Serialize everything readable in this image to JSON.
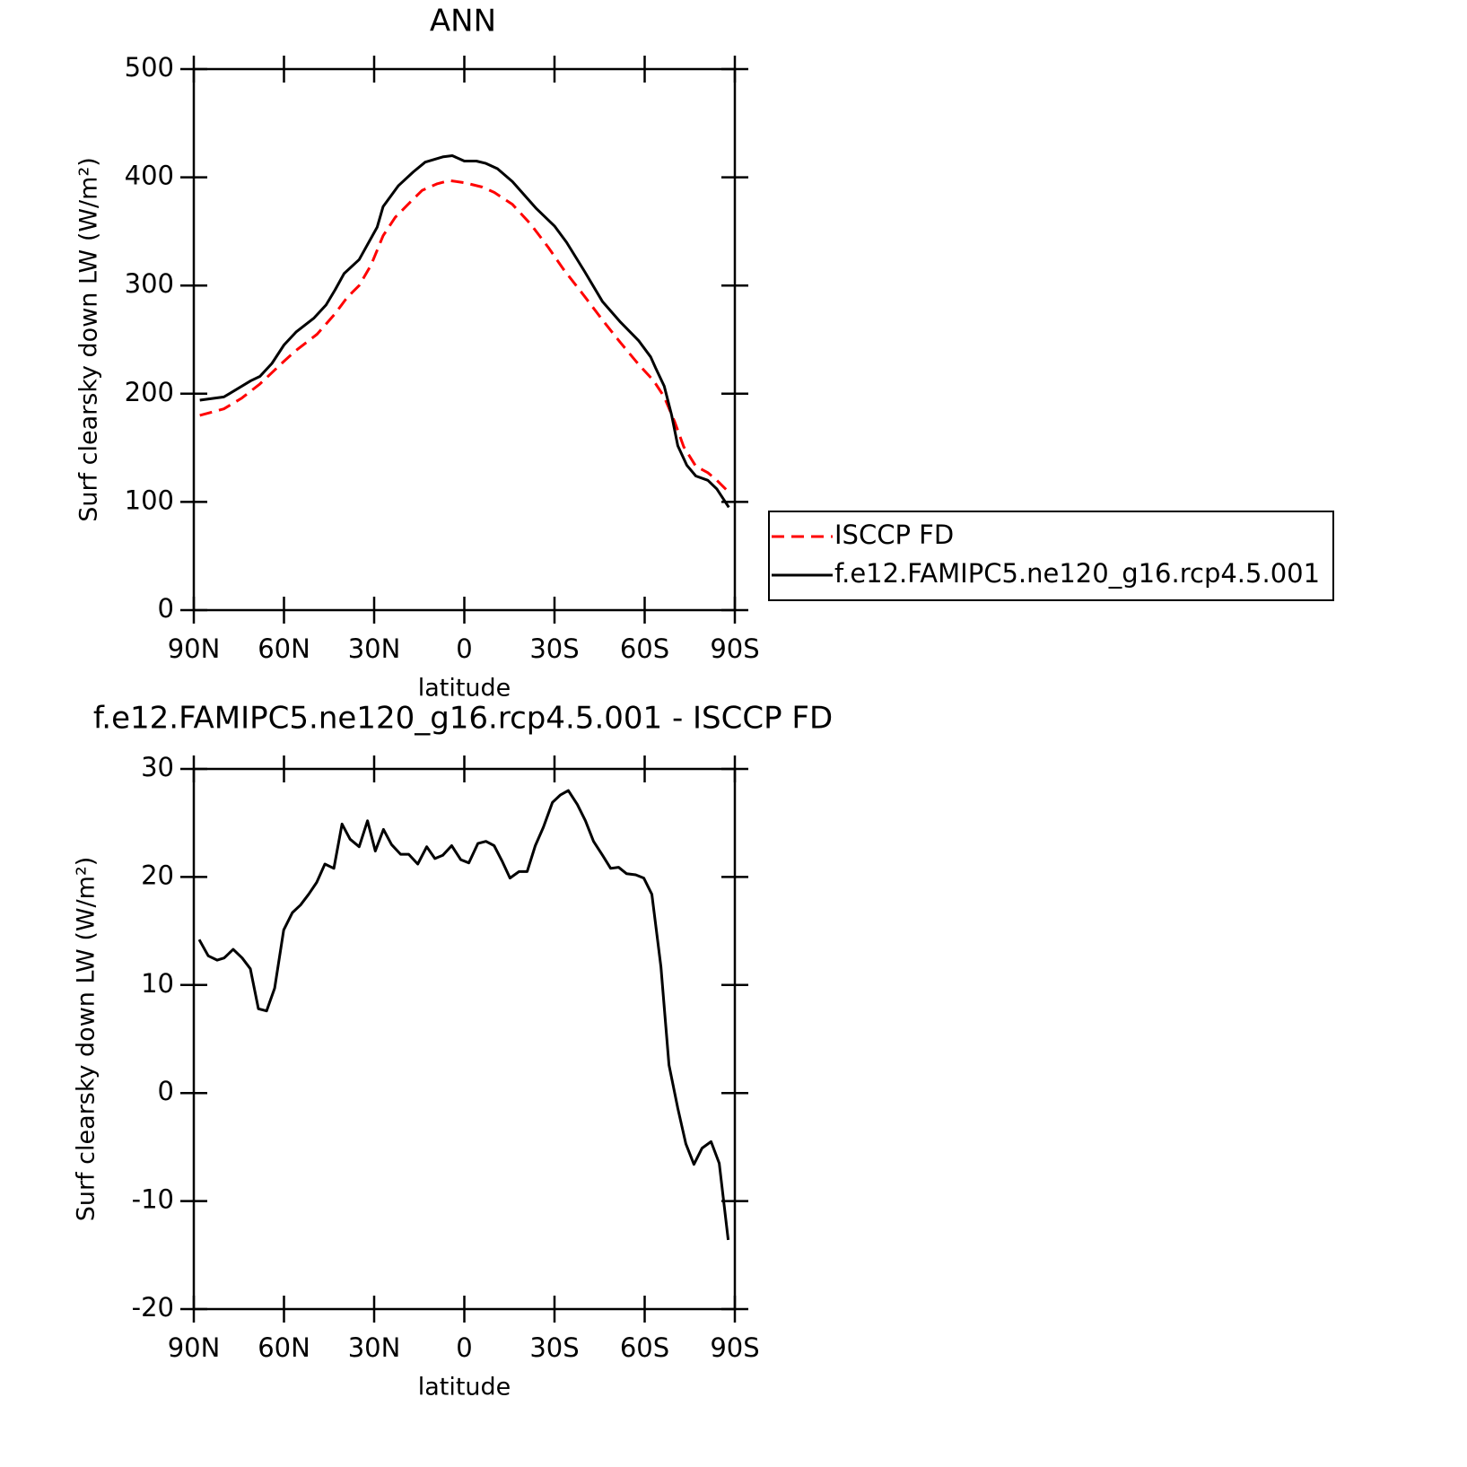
{
  "chart_data": [
    {
      "type": "line",
      "title": "ANN",
      "xlabel": "latitude",
      "ylabel": "Surf clearsky down LW (W/m²)",
      "xlim": [
        90,
        -90
      ],
      "xticks": [
        {
          "value": 90,
          "label": "90N"
        },
        {
          "value": 60,
          "label": "60N"
        },
        {
          "value": 30,
          "label": "30N"
        },
        0,
        {
          "value": -30,
          "label": "30S"
        },
        {
          "value": -60,
          "label": "60S"
        },
        {
          "value": -90,
          "label": "90S"
        }
      ],
      "ylim": [
        0,
        500
      ],
      "yticks": [
        0,
        100,
        200,
        300,
        400,
        500
      ],
      "legend": "right",
      "series": [
        {
          "name": "ISCCP FD",
          "color": "#ff0000",
          "dash": true,
          "x": [
            88,
            80,
            74,
            68,
            60,
            56,
            49,
            43,
            39,
            35,
            31,
            27,
            23,
            18,
            14,
            9,
            5,
            0,
            -6,
            -10,
            -16,
            -22,
            -28,
            -33,
            -40,
            -46,
            -52,
            -58,
            -63,
            -66.5,
            -70,
            -73,
            -77,
            -81,
            -84,
            -88
          ],
          "values": [
            180,
            186,
            196,
            209,
            230,
            240,
            255,
            274,
            289,
            300,
            319,
            346,
            363,
            377,
            388,
            394,
            397,
            395,
            391,
            386,
            375,
            357,
            335,
            315,
            290,
            268,
            247,
            227,
            212,
            197,
            174,
            151,
            133,
            127,
            120,
            109
          ]
        },
        {
          "name": "f.e12.FAMIPC5.ne120_g16.rcp4.5.001",
          "color": "#000000",
          "dash": false,
          "x": [
            88,
            80,
            71,
            68,
            64,
            60,
            56,
            50,
            46,
            43,
            40,
            35,
            29,
            27,
            22,
            17,
            13,
            7,
            4,
            0,
            -4,
            -7,
            -11,
            -16,
            -24,
            -30,
            -34,
            -40,
            -46,
            -52,
            -58,
            -62,
            -63.6,
            -66.5,
            -69,
            -71,
            -74,
            -77,
            -81,
            -84,
            -88
          ],
          "values": [
            194,
            197,
            212,
            216,
            228,
            245,
            257,
            270,
            282,
            296,
            311,
            324,
            354,
            373,
            392,
            405,
            414,
            419,
            420,
            415,
            415,
            413,
            408,
            396,
            371,
            355,
            340,
            313,
            285,
            266,
            249,
            234,
            224,
            207,
            180,
            152,
            134,
            124,
            120,
            112,
            95
          ]
        }
      ]
    },
    {
      "type": "line",
      "title": "f.e12.FAMIPC5.ne120_g16.rcp4.5.001 - ISCCP FD",
      "xlabel": "latitude",
      "ylabel": "Surf clearsky down LW (W/m²)",
      "xlim": [
        90,
        -90
      ],
      "xticks": [
        {
          "value": 90,
          "label": "90N"
        },
        {
          "value": 60,
          "label": "60N"
        },
        {
          "value": 30,
          "label": "30N"
        },
        0,
        {
          "value": -30,
          "label": "30S"
        },
        {
          "value": -60,
          "label": "60S"
        },
        {
          "value": -90,
          "label": "90S"
        }
      ],
      "ylim": [
        -20,
        30
      ],
      "yticks": [
        -20,
        -10,
        0,
        10,
        20,
        30
      ],
      "series": [
        {
          "color": "#000000",
          "dash": false,
          "x": [
            88.2,
            85.2,
            82.2,
            79.9,
            76.9,
            73.9,
            71.2,
            68.5,
            65.8,
            63.1,
            60.1,
            57.2,
            54.5,
            51.8,
            49.1,
            46.4,
            43.4,
            40.7,
            38.0,
            35.0,
            32.2,
            29.6,
            26.9,
            24.2,
            21.2,
            18.5,
            15.5,
            12.5,
            9.8,
            7.2,
            4.2,
            1.2,
            -1.5,
            -4.5,
            -7.2,
            -9.9,
            -12.5,
            -15.2,
            -18.2,
            -20.9,
            -23.6,
            -26.3,
            -29.3,
            -32.0,
            -34.6,
            -37.6,
            -40.3,
            -43.0,
            -46.0,
            -48.7,
            -51.3,
            -54.0,
            -57.0,
            -59.7,
            -62.4,
            -65.4,
            -68.1,
            -71.0,
            -73.7,
            -76.4,
            -79.1,
            -82.1,
            -84.8,
            -87.8
          ],
          "values": [
            14.2,
            12.7,
            12.3,
            12.5,
            13.3,
            12.5,
            11.5,
            7.8,
            7.6,
            9.7,
            15.1,
            16.7,
            17.4,
            18.4,
            19.5,
            21.2,
            20.8,
            24.9,
            23.5,
            22.8,
            25.2,
            22.4,
            24.4,
            23.0,
            22.1,
            22.1,
            21.2,
            22.8,
            21.7,
            22.0,
            22.9,
            21.6,
            21.3,
            23.1,
            23.3,
            22.9,
            21.5,
            19.9,
            20.5,
            20.5,
            22.9,
            24.6,
            26.9,
            27.6,
            28.0,
            26.7,
            25.2,
            23.3,
            22.0,
            20.8,
            20.9,
            20.3,
            20.2,
            19.9,
            18.4,
            11.7,
            2.6,
            -1.4,
            -4.7,
            -6.6,
            -5.1,
            -4.5,
            -6.5,
            -13.6
          ]
        }
      ]
    }
  ]
}
